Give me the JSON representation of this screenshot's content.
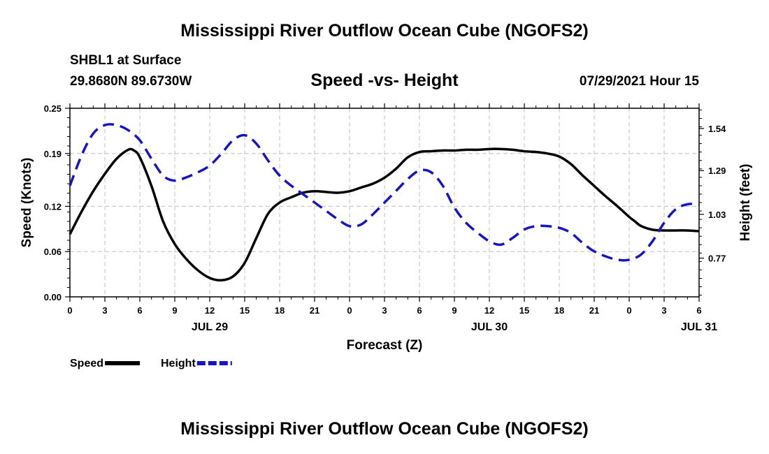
{
  "page": {
    "title": "Mississippi River Outflow Ocean Cube (NGOFS2)",
    "footer_title": "Mississippi River Outflow Ocean Cube (NGOFS2)",
    "station": "SHBL1 at Surface",
    "coordinates": "29.8680N  89.6730W",
    "subtitle": "Speed -vs- Height",
    "datetime": "07/29/2021 Hour 15"
  },
  "chart_data": {
    "type": "line",
    "title": "Speed -vs- Height",
    "xlabel": "Forecast (Z)",
    "ylabel": "Speed (Knots)",
    "y2label": "Height (feet)",
    "x_tick_labels": [
      "0",
      "3",
      "6",
      "9",
      "12",
      "15",
      "18",
      "21",
      "0",
      "3",
      "6",
      "9",
      "12",
      "15",
      "18",
      "21",
      "0",
      "3",
      "6"
    ],
    "date_labels": [
      {
        "label": "JUL 29",
        "hour": 12
      },
      {
        "label": "JUL 30",
        "hour": 36
      },
      {
        "label": "JUL 31",
        "hour": 54
      }
    ],
    "xlim": [
      0,
      54
    ],
    "ylim": [
      0,
      0.25
    ],
    "y_ticks": [
      0.0,
      0.06,
      0.12,
      0.19,
      0.25
    ],
    "y_tick_labels": [
      "0.00",
      "0.06",
      "0.12",
      "0.19",
      "0.25"
    ],
    "y2lim": [
      0.54,
      1.66
    ],
    "y2_ticks": [
      0.77,
      1.03,
      1.29,
      1.54
    ],
    "y2_tick_labels": [
      "0.77",
      "1.03",
      "1.29",
      "1.54"
    ],
    "grid": true,
    "legend": [
      {
        "name": "Speed",
        "color": "#000000",
        "style": "solid"
      },
      {
        "name": "Height",
        "color": "#1515c8",
        "style": "dashed"
      }
    ],
    "series": [
      {
        "name": "Speed",
        "axis": "left",
        "color": "#000000",
        "style": "solid",
        "x": [
          0,
          1,
          2,
          3,
          4,
          5,
          5.5,
          6,
          7,
          8,
          9,
          10,
          11,
          12,
          13,
          14,
          15,
          16,
          17,
          18,
          19,
          20,
          21,
          22,
          23,
          24,
          25,
          26,
          27,
          28,
          29,
          30,
          31,
          32,
          33,
          34,
          35,
          36,
          37,
          38,
          39,
          40,
          41,
          42,
          43,
          44,
          45,
          46,
          47,
          48,
          48.5,
          49,
          50,
          51,
          52,
          53,
          54
        ],
        "values": [
          0.083,
          0.113,
          0.14,
          0.163,
          0.183,
          0.195,
          0.194,
          0.185,
          0.147,
          0.1,
          0.07,
          0.05,
          0.035,
          0.025,
          0.022,
          0.027,
          0.045,
          0.078,
          0.11,
          0.125,
          0.132,
          0.138,
          0.14,
          0.139,
          0.138,
          0.14,
          0.145,
          0.15,
          0.158,
          0.17,
          0.185,
          0.192,
          0.193,
          0.194,
          0.194,
          0.195,
          0.195,
          0.196,
          0.196,
          0.195,
          0.193,
          0.192,
          0.19,
          0.186,
          0.176,
          0.161,
          0.147,
          0.133,
          0.12,
          0.106,
          0.1,
          0.094,
          0.089,
          0.088,
          0.088,
          0.088,
          0.087
        ]
      },
      {
        "name": "Height",
        "axis": "right",
        "color": "#1515c8",
        "style": "dashed",
        "x": [
          0,
          1,
          2,
          3,
          4,
          5,
          6,
          7,
          8,
          9,
          10,
          11,
          12,
          13,
          14,
          15,
          16,
          17,
          18,
          19,
          20,
          21,
          22,
          23,
          24,
          25,
          26,
          27,
          28,
          29,
          30,
          31,
          32,
          33,
          34,
          35,
          36,
          37,
          38,
          39,
          40,
          41,
          42,
          43,
          44,
          45,
          46,
          47,
          48,
          49,
          50,
          51,
          52,
          53,
          54
        ],
        "values": [
          1.2,
          1.38,
          1.51,
          1.56,
          1.56,
          1.53,
          1.47,
          1.36,
          1.26,
          1.23,
          1.25,
          1.28,
          1.32,
          1.39,
          1.47,
          1.5,
          1.45,
          1.35,
          1.26,
          1.2,
          1.15,
          1.1,
          1.05,
          1.0,
          0.96,
          0.97,
          1.03,
          1.1,
          1.17,
          1.24,
          1.29,
          1.28,
          1.2,
          1.07,
          0.98,
          0.92,
          0.87,
          0.85,
          0.89,
          0.94,
          0.96,
          0.96,
          0.95,
          0.92,
          0.86,
          0.81,
          0.78,
          0.76,
          0.76,
          0.79,
          0.87,
          0.98,
          1.06,
          1.09,
          1.09
        ]
      }
    ]
  }
}
